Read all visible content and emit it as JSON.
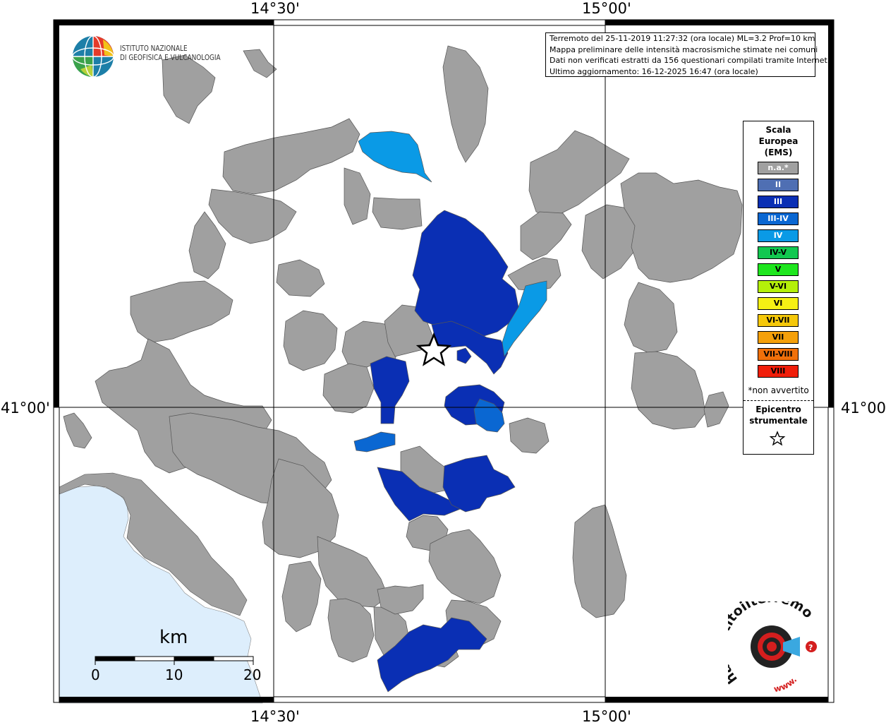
{
  "coords": {
    "top": [
      "14°30'",
      "15°00'"
    ],
    "bottom": [
      "14°30'",
      "15°00'"
    ],
    "left": "41°00'",
    "right": "41°00'"
  },
  "info": {
    "line1": "Terremoto del 25-11-2019 11:27:32 (ora locale) ML=3.2 Prof=10 km",
    "line2": "Mappa preliminare delle intensità macrosismiche stimate nei comuni",
    "line3": "Dati non verificati estratti da 156 questionari compilati tramite Internet.",
    "line4": "Ultimo aggiornamento: 16-12-2025 16:47 (ora locale)"
  },
  "logo_ingv": {
    "line1": "ISTITUTO NAZIONALE",
    "line2": "DI GEOFISICA E VULCANOLOGIA"
  },
  "legend": {
    "title1": "Scala",
    "title2": "Europea",
    "title3": "(EMS)",
    "items": [
      {
        "label": "n.a.*",
        "color": "#a0a0a0",
        "text": "#ffffff"
      },
      {
        "label": "II",
        "color": "#4f6fb3",
        "text": "#ffffff"
      },
      {
        "label": "III",
        "color": "#0a2fb4",
        "text": "#ffffff"
      },
      {
        "label": "III-IV",
        "color": "#0a67d2",
        "text": "#ffffff"
      },
      {
        "label": "IV",
        "color": "#0a9ae6",
        "text": "#ffffff"
      },
      {
        "label": "IV-V",
        "color": "#12c850",
        "text": "#000000"
      },
      {
        "label": "V",
        "color": "#1ee61e",
        "text": "#000000"
      },
      {
        "label": "V-VI",
        "color": "#b4f00a",
        "text": "#000000"
      },
      {
        "label": "VI",
        "color": "#f5f014",
        "text": "#000000"
      },
      {
        "label": "VI-VII",
        "color": "#f5c80a",
        "text": "#000000"
      },
      {
        "label": "VII",
        "color": "#f5a00a",
        "text": "#000000"
      },
      {
        "label": "VII-VIII",
        "color": "#f0700a",
        "text": "#000000"
      },
      {
        "label": "VIII",
        "color": "#f01e0a",
        "text": "#000000"
      }
    ],
    "note": "*non avvertito",
    "epi1": "Epicentro",
    "epi2": "strumentale"
  },
  "scalebar": {
    "unit": "km",
    "ticks": [
      "0",
      "10",
      "20"
    ]
  },
  "logo_hse": {
    "text": "haisentitoilterremoto.it",
    "www": "www."
  },
  "colors": {
    "na": "#a0a0a0",
    "III": "#0a2fb4",
    "III-IV": "#0a67d2",
    "IV": "#0a9ae6",
    "sea": "#ddeefc"
  }
}
